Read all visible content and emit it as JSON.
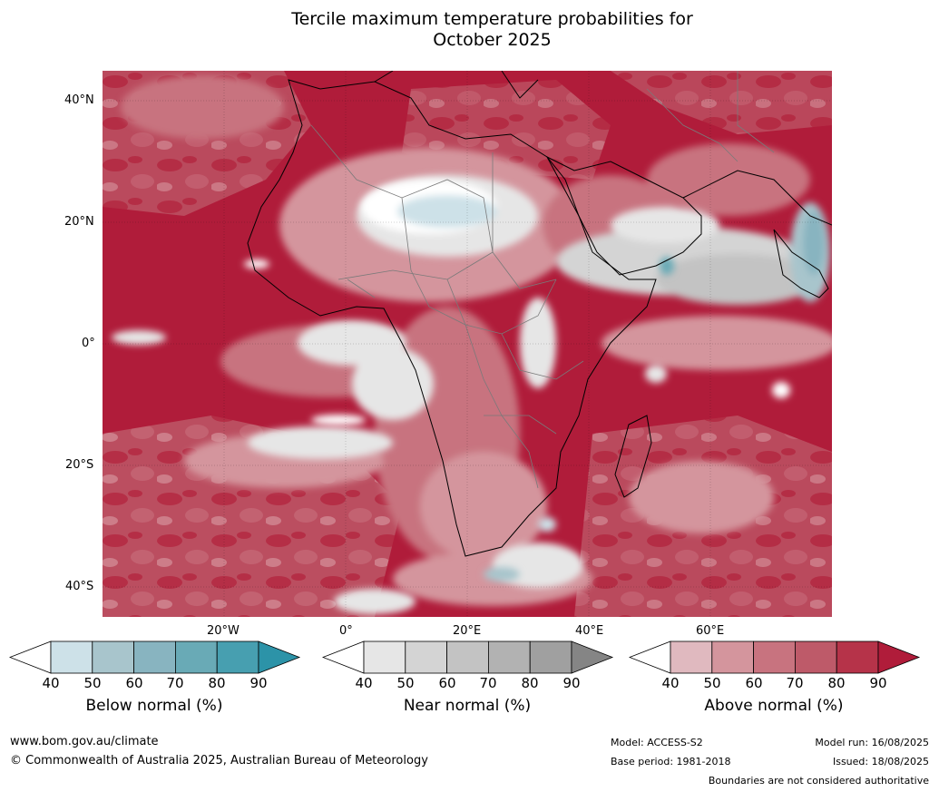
{
  "title_line1": "Tercile maximum temperature probabilities for",
  "title_line2": "October 2025",
  "lat_labels": [
    "40°N",
    "20°N",
    "0°",
    "20°S",
    "40°S"
  ],
  "lon_labels": [
    "20°W",
    "0°",
    "20°E",
    "40°E",
    "60°E"
  ],
  "colorbars": [
    {
      "label": "Below normal (%)",
      "ticks": [
        "40",
        "50",
        "60",
        "70",
        "80",
        "90"
      ],
      "colors": [
        "#cde1e8",
        "#a8c5cc",
        "#88b4c0",
        "#69aab6",
        "#479fb0"
      ],
      "extend_color": "#2c93a8"
    },
    {
      "label": "Near normal (%)",
      "ticks": [
        "40",
        "50",
        "60",
        "70",
        "80",
        "90"
      ],
      "colors": [
        "#e6e6e6",
        "#d4d4d4",
        "#c3c3c3",
        "#b2b2b2",
        "#a0a0a0"
      ],
      "extend_color": "#858585"
    },
    {
      "label": "Above normal (%)",
      "ticks": [
        "40",
        "50",
        "60",
        "70",
        "80",
        "90"
      ],
      "colors": [
        "#e0b9bf",
        "#d4959d",
        "#c8737f",
        "#be5a69",
        "#b63349"
      ],
      "extend_color": "#b01c3a"
    }
  ],
  "footer": {
    "url": "www.bom.gov.au/climate",
    "copyright": "© Commonwealth of Australia 2025, Australian Bureau of Meteorology",
    "model": "Model: ACCESS-S2",
    "base_period": "Base period: 1981-2018",
    "model_run": "Model run: 16/08/2025",
    "issued": "Issued: 18/08/2025",
    "disclaimer": "Boundaries are not considered authoritative"
  }
}
